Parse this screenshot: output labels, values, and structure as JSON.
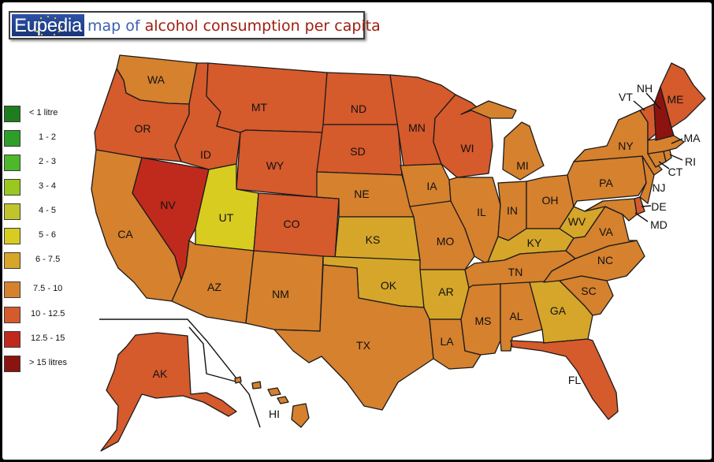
{
  "title": {
    "brand": "Eupedia",
    "map_of": "map of",
    "topic": "alcohol consumption per capita"
  },
  "legend": [
    {
      "label": "< 1 litre",
      "color": "#1e7d1e"
    },
    {
      "label": "1 - 2",
      "color": "#2d9f28"
    },
    {
      "label": "2 - 3",
      "color": "#4cb82a"
    },
    {
      "label": "3 - 4",
      "color": "#9ac81f"
    },
    {
      "label": "4 - 5",
      "color": "#c1c52c"
    },
    {
      "label": "5 - 6",
      "color": "#d8cc20"
    },
    {
      "label": "6 - 7.5",
      "color": "#d5a62a"
    },
    {
      "label": "7.5 - 10",
      "color": "#d5812e"
    },
    {
      "label": "10 - 12.5",
      "color": "#d55a2c"
    },
    {
      "label": "12.5 - 15",
      "color": "#c02a1d"
    },
    {
      "label": "> 15 litres",
      "color": "#8b1410"
    }
  ],
  "states": {
    "WA": {
      "label": "WA",
      "range": "7.5 - 10"
    },
    "OR": {
      "label": "OR",
      "range": "10 - 12.5"
    },
    "CA": {
      "label": "CA",
      "range": "7.5 - 10"
    },
    "NV": {
      "label": "NV",
      "range": "12.5 - 15"
    },
    "ID": {
      "label": "ID",
      "range": "10 - 12.5"
    },
    "MT": {
      "label": "MT",
      "range": "10 - 12.5"
    },
    "WY": {
      "label": "WY",
      "range": "10 - 12.5"
    },
    "UT": {
      "label": "UT",
      "range": "5 - 6"
    },
    "AZ": {
      "label": "AZ",
      "range": "7.5 - 10"
    },
    "CO": {
      "label": "CO",
      "range": "10 - 12.5"
    },
    "NM": {
      "label": "NM",
      "range": "7.5 - 10"
    },
    "ND": {
      "label": "ND",
      "range": "10 - 12.5"
    },
    "SD": {
      "label": "SD",
      "range": "10 - 12.5"
    },
    "NE": {
      "label": "NE",
      "range": "7.5 - 10"
    },
    "KS": {
      "label": "KS",
      "range": "6 - 7.5"
    },
    "OK": {
      "label": "OK",
      "range": "6 - 7.5"
    },
    "TX": {
      "label": "TX",
      "range": "7.5 - 10"
    },
    "MN": {
      "label": "MN",
      "range": "10 - 12.5"
    },
    "IA": {
      "label": "IA",
      "range": "7.5 - 10"
    },
    "MO": {
      "label": "MO",
      "range": "7.5 - 10"
    },
    "AR": {
      "label": "AR",
      "range": "6 - 7.5"
    },
    "LA": {
      "label": "LA",
      "range": "7.5 - 10"
    },
    "WI": {
      "label": "WI",
      "range": "10 - 12.5"
    },
    "IL": {
      "label": "IL",
      "range": "7.5 - 10"
    },
    "MI": {
      "label": "MI",
      "range": "7.5 - 10"
    },
    "IN": {
      "label": "IN",
      "range": "7.5 - 10"
    },
    "OH": {
      "label": "OH",
      "range": "7.5 - 10"
    },
    "KY": {
      "label": "KY",
      "range": "6 - 7.5"
    },
    "TN": {
      "label": "TN",
      "range": "7.5 - 10"
    },
    "MS": {
      "label": "MS",
      "range": "7.5 - 10"
    },
    "AL": {
      "label": "AL",
      "range": "7.5 - 10"
    },
    "GA": {
      "label": "GA",
      "range": "6 - 7.5"
    },
    "FL": {
      "label": "FL",
      "range": "10 - 12.5"
    },
    "SC": {
      "label": "SC",
      "range": "7.5 - 10"
    },
    "NC": {
      "label": "NC",
      "range": "7.5 - 10"
    },
    "VA": {
      "label": "VA",
      "range": "7.5 - 10"
    },
    "WV": {
      "label": "WV",
      "range": "6 - 7.5"
    },
    "PA": {
      "label": "PA",
      "range": "7.5 - 10"
    },
    "NY": {
      "label": "NY",
      "range": "7.5 - 10"
    },
    "NJ": {
      "label": "NJ",
      "range": "7.5 - 10"
    },
    "DE": {
      "label": "DE",
      "range": "10 - 12.5"
    },
    "MD": {
      "label": "MD",
      "range": "7.5 - 10"
    },
    "CT": {
      "label": "CT",
      "range": "7.5 - 10"
    },
    "RI": {
      "label": "RI",
      "range": "7.5 - 10"
    },
    "MA": {
      "label": "MA",
      "range": "7.5 - 10"
    },
    "VT": {
      "label": "VT",
      "range": "10 - 12.5"
    },
    "NH": {
      "label": "NH",
      "range": "> 15 litres"
    },
    "ME": {
      "label": "ME",
      "range": "10 - 12.5"
    },
    "AK": {
      "label": "AK",
      "range": "10 - 12.5"
    },
    "HI": {
      "label": "HI",
      "range": "7.5 - 10"
    }
  }
}
